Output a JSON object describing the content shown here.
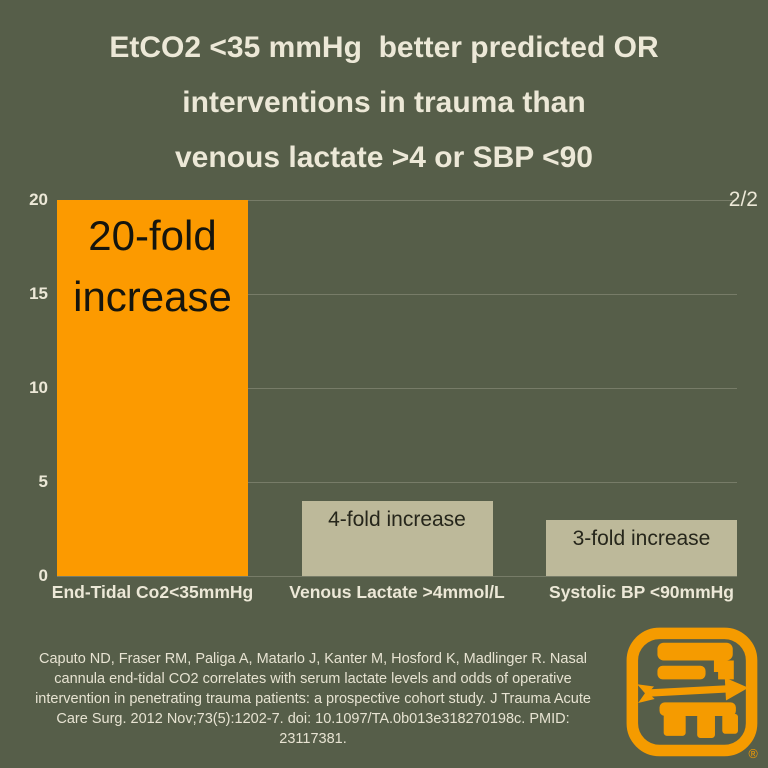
{
  "page": {
    "background": "#565e49",
    "indicator": "2/2"
  },
  "title": {
    "color": "#ece8d7",
    "lines": [
      "EtCO2 <35 mmHg  better predicted OR",
      "interventions in trauma than",
      "venous lactate >4 or SBP <90"
    ]
  },
  "chart_data": {
    "type": "bar",
    "categories": [
      "End-Tidal Co2<35mmHg",
      "Venous Lactate >4mmol/L",
      "Systolic BP <90mmHg"
    ],
    "values": [
      20,
      4,
      3
    ],
    "bar_labels": [
      "20-fold increase",
      "4-fold increase",
      "3-fold increase"
    ],
    "bar_colors": [
      "#fc9a00",
      "#bdb99a",
      "#bdb99a"
    ],
    "y_ticks": [
      0,
      5,
      10,
      15,
      20
    ],
    "ylim": [
      0,
      20
    ],
    "grid": true,
    "title": "",
    "xlabel": "",
    "ylabel": "",
    "legend_position": "none",
    "tick_color": "#ece8d7",
    "gridline_color": "rgba(236,232,215,0.22)"
  },
  "citation": {
    "lines": [
      "Caputo ND, Fraser RM, Paliga A, Matarlo J, Kanter M, Hosford K, Madlinger R. Nasal",
      "cannula end-tidal CO2 correlates with serum lactate levels and odds of operative",
      "intervention in penetrating trauma patients: a prospective cohort study. J Trauma Acute",
      "Care Surg. 2012 Nov;73(5):1202-7. doi: 10.1097/TA.0b013e318270198c. PMID: 23117381."
    ]
  },
  "logo": {
    "color": "#f59b00",
    "registered_mark": "®"
  }
}
